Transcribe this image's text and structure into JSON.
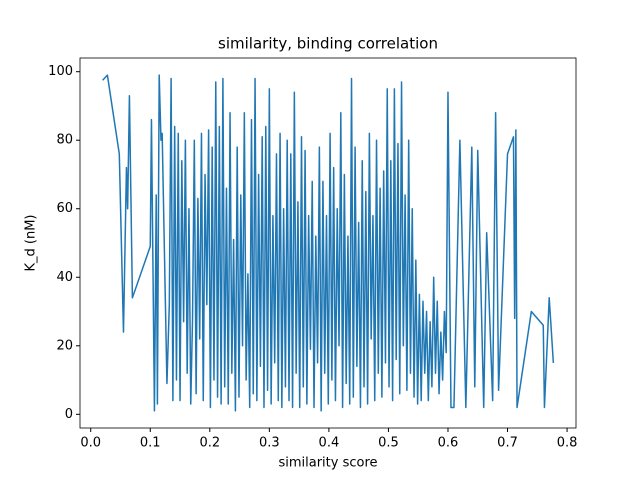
{
  "chart_data": {
    "type": "line",
    "title": "similarity, binding correlation",
    "xlabel": "similarity score",
    "ylabel": "K_d (nM)",
    "xlim": [
      -0.018,
      0.815
    ],
    "ylim": [
      -4,
      104
    ],
    "xticks": [
      {
        "value": 0.0,
        "label": "0.0"
      },
      0.1,
      0.2,
      0.3,
      0.4,
      0.5,
      0.6,
      0.7,
      0.8
    ],
    "yticks": [
      0,
      20,
      40,
      60,
      80,
      100
    ],
    "series": [
      {
        "color": "#1f77b4",
        "x": [
          0.02,
          0.028,
          0.048,
          0.055,
          0.06,
          0.062,
          0.065,
          0.07,
          0.1,
          0.102,
          0.107,
          0.11,
          0.112,
          0.115,
          0.118,
          0.12,
          0.128,
          0.132,
          0.135,
          0.138,
          0.141,
          0.144,
          0.147,
          0.15,
          0.153,
          0.156,
          0.159,
          0.162,
          0.165,
          0.168,
          0.171,
          0.174,
          0.177,
          0.18,
          0.183,
          0.186,
          0.189,
          0.192,
          0.195,
          0.198,
          0.201,
          0.204,
          0.207,
          0.21,
          0.213,
          0.216,
          0.219,
          0.222,
          0.225,
          0.228,
          0.231,
          0.234,
          0.237,
          0.24,
          0.243,
          0.246,
          0.249,
          0.252,
          0.255,
          0.258,
          0.261,
          0.264,
          0.267,
          0.27,
          0.273,
          0.276,
          0.279,
          0.282,
          0.285,
          0.288,
          0.291,
          0.294,
          0.297,
          0.3,
          0.303,
          0.306,
          0.309,
          0.312,
          0.315,
          0.318,
          0.321,
          0.324,
          0.327,
          0.33,
          0.333,
          0.336,
          0.339,
          0.342,
          0.345,
          0.348,
          0.351,
          0.354,
          0.357,
          0.36,
          0.363,
          0.366,
          0.369,
          0.372,
          0.375,
          0.378,
          0.381,
          0.384,
          0.387,
          0.39,
          0.393,
          0.396,
          0.399,
          0.402,
          0.405,
          0.408,
          0.411,
          0.414,
          0.417,
          0.42,
          0.423,
          0.426,
          0.429,
          0.432,
          0.435,
          0.438,
          0.441,
          0.444,
          0.447,
          0.45,
          0.453,
          0.456,
          0.459,
          0.462,
          0.465,
          0.468,
          0.471,
          0.474,
          0.477,
          0.48,
          0.483,
          0.486,
          0.489,
          0.492,
          0.495,
          0.498,
          0.501,
          0.504,
          0.507,
          0.51,
          0.513,
          0.516,
          0.519,
          0.522,
          0.525,
          0.528,
          0.531,
          0.534,
          0.537,
          0.54,
          0.543,
          0.546,
          0.549,
          0.552,
          0.555,
          0.558,
          0.561,
          0.564,
          0.567,
          0.57,
          0.573,
          0.576,
          0.579,
          0.582,
          0.585,
          0.588,
          0.591,
          0.594,
          0.597,
          0.6,
          0.605,
          0.61,
          0.62,
          0.63,
          0.64,
          0.645,
          0.65,
          0.66,
          0.665,
          0.675,
          0.68,
          0.685,
          0.7,
          0.71,
          0.712,
          0.714,
          0.716,
          0.74,
          0.76,
          0.762,
          0.77,
          0.777
        ],
        "values": [
          97.5,
          99,
          76,
          24,
          72,
          60,
          93,
          34,
          49,
          86,
          1,
          64,
          3,
          99,
          80,
          82,
          9,
          32,
          98,
          4,
          84,
          10,
          82,
          4,
          74,
          27,
          80,
          12,
          60,
          3,
          28,
          80,
          6,
          63,
          22,
          82,
          4,
          70,
          32,
          83,
          2,
          78,
          10,
          97,
          5,
          84,
          3,
          98,
          8,
          66,
          3,
          88,
          12,
          51,
          1,
          78,
          5,
          64,
          20,
          88,
          10,
          41,
          2,
          86,
          6,
          98,
          4,
          70,
          14,
          81,
          2,
          84,
          7,
          95,
          3,
          58,
          15,
          76,
          4,
          82,
          2,
          60,
          8,
          80,
          4,
          76,
          2,
          94,
          12,
          62,
          2,
          81,
          8,
          77,
          3,
          58,
          19,
          68,
          2,
          52,
          15,
          78,
          1,
          68,
          12,
          58,
          3,
          82,
          10,
          72,
          4,
          60,
          20,
          88,
          2,
          70,
          9,
          52,
          3,
          98,
          5,
          78,
          14,
          56,
          2,
          74,
          8,
          65,
          3,
          82,
          22,
          58,
          4,
          80,
          12,
          66,
          5,
          71,
          15,
          95,
          8,
          74,
          4,
          95,
          16,
          79,
          6,
          97,
          20,
          64,
          7,
          80,
          12,
          60,
          5,
          45,
          3,
          35,
          4,
          33,
          12,
          30,
          4,
          27,
          8,
          40,
          12,
          33,
          6,
          24,
          10,
          30,
          18,
          94,
          2,
          2,
          80,
          2,
          78,
          8,
          77,
          2,
          53,
          4,
          88,
          7,
          76,
          81,
          28,
          83,
          2,
          30,
          26,
          2,
          34,
          15
        ]
      }
    ]
  }
}
